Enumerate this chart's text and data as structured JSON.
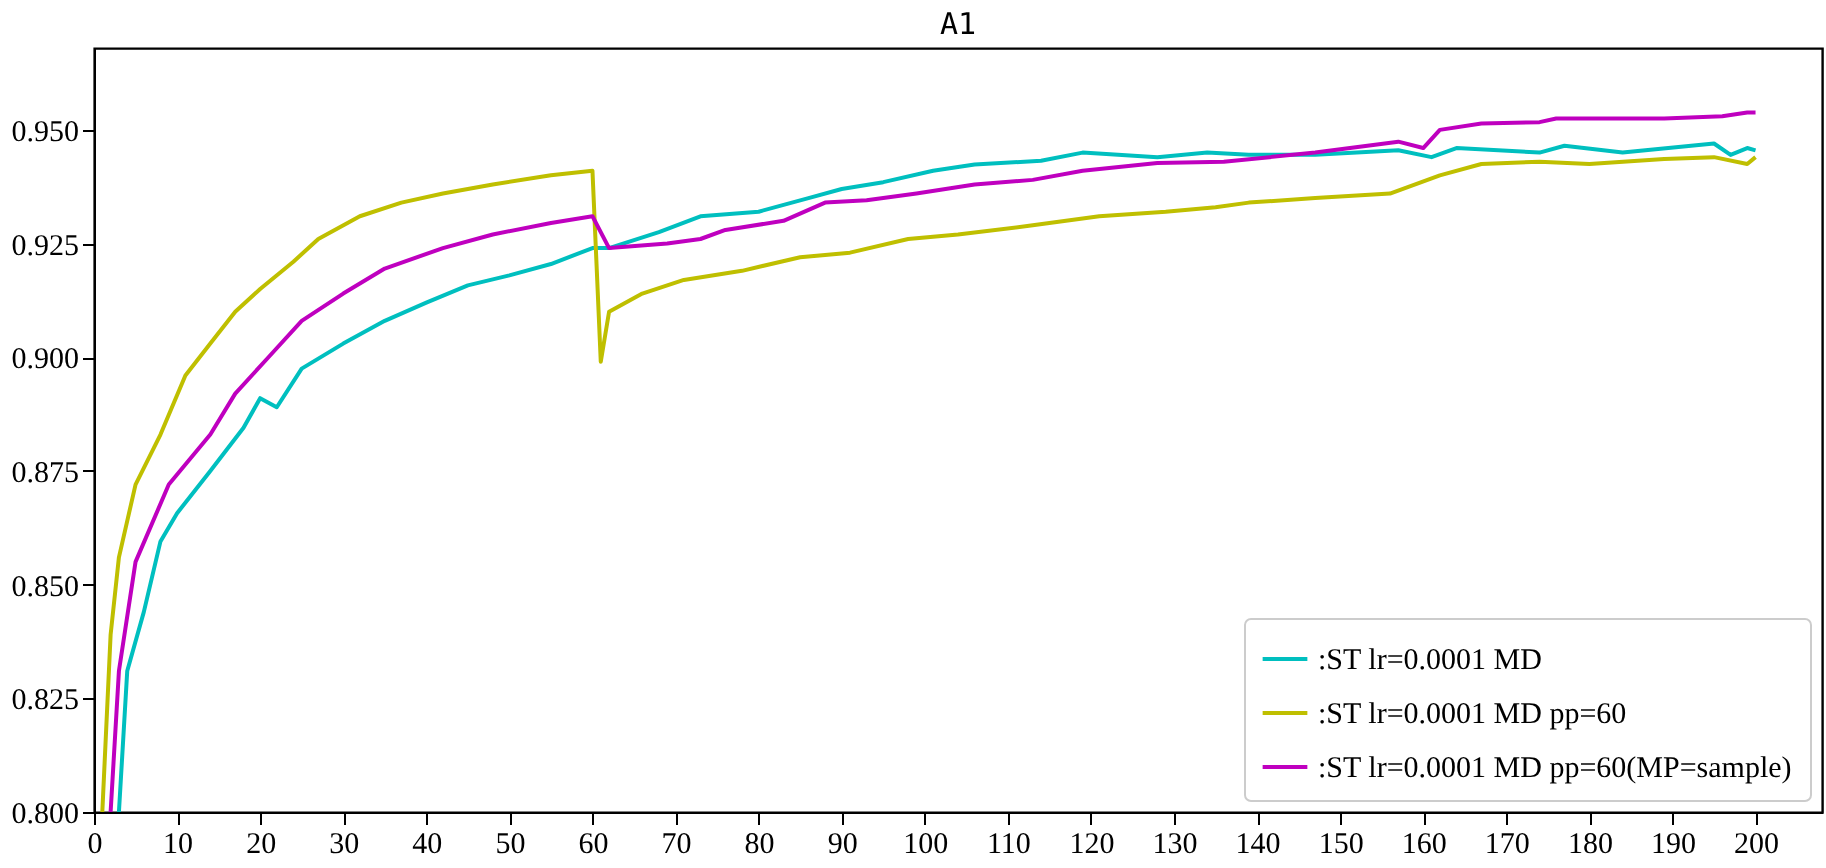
{
  "chart_data": {
    "type": "line",
    "title": "A1",
    "xlim": [
      0,
      208
    ],
    "xticks": [
      0,
      10,
      20,
      30,
      40,
      50,
      60,
      70,
      80,
      90,
      100,
      110,
      120,
      130,
      140,
      150,
      160,
      170,
      180,
      190,
      200
    ],
    "ylim": [
      0.8,
      0.968
    ],
    "yticks": [
      {
        "value": 0.8,
        "label": "0.800"
      },
      0.825,
      {
        "value": 0.85,
        "label": "0.850"
      },
      0.875,
      {
        "value": 0.9,
        "label": "0.900"
      },
      0.925,
      {
        "value": 0.95,
        "label": "0.950"
      }
    ],
    "grid": false,
    "legend": "bottom right",
    "series": [
      {
        "name": ":ST lr=0.0001 MD",
        "color": "#00bfbf",
        "x": [
          3,
          4,
          6,
          8,
          10,
          14,
          18,
          20,
          22,
          25,
          30,
          35,
          40,
          45,
          50,
          55,
          60,
          62,
          68,
          73,
          80,
          86,
          90,
          95,
          101,
          106,
          114,
          119,
          128,
          134,
          139,
          147,
          157,
          161,
          164,
          174,
          177,
          184,
          195,
          197,
          199,
          200
        ],
        "values": [
          0.8,
          0.831,
          0.844,
          0.8595,
          0.8657,
          0.875,
          0.8845,
          0.891,
          0.889,
          0.8975,
          0.903,
          0.908,
          0.912,
          0.9158,
          0.918,
          0.9205,
          0.924,
          0.924,
          0.9275,
          0.931,
          0.932,
          0.935,
          0.937,
          0.9385,
          0.941,
          0.9424,
          0.9432,
          0.945,
          0.944,
          0.945,
          0.9445,
          0.9445,
          0.9455,
          0.944,
          0.946,
          0.945,
          0.9465,
          0.945,
          0.947,
          0.9445,
          0.946,
          0.9455
        ]
      },
      {
        "name": ":ST lr=0.0001 MD pp=60",
        "color": "#bfbf00",
        "x": [
          1,
          2,
          3,
          5,
          8,
          11,
          14,
          17,
          20,
          24,
          27,
          32,
          37,
          42,
          48,
          55,
          60,
          61,
          62,
          66,
          71,
          78,
          85,
          91,
          98,
          104,
          113,
          121,
          129,
          135,
          139,
          147,
          156,
          162,
          167,
          174,
          180,
          189,
          195,
          199,
          200
        ],
        "values": [
          0.8,
          0.839,
          0.856,
          0.872,
          0.883,
          0.896,
          0.903,
          0.91,
          0.915,
          0.921,
          0.926,
          0.931,
          0.934,
          0.936,
          0.938,
          0.94,
          0.941,
          0.899,
          0.91,
          0.914,
          0.917,
          0.919,
          0.922,
          0.923,
          0.926,
          0.927,
          0.929,
          0.931,
          0.932,
          0.933,
          0.934,
          0.935,
          0.936,
          0.94,
          0.9425,
          0.943,
          0.9425,
          0.9436,
          0.944,
          0.9425,
          0.944
        ]
      },
      {
        "name": ":ST lr=0.0001 MD pp=60(MP=sample)",
        "color": "#bf00bf",
        "x": [
          2,
          3,
          5,
          9,
          14,
          17,
          21,
          25,
          30,
          35,
          42,
          48,
          55,
          60,
          62,
          69,
          73,
          76,
          83,
          88,
          93,
          99,
          106,
          113,
          119,
          128,
          136,
          147,
          157,
          160,
          162,
          167,
          174,
          176,
          183,
          189,
          196,
          199,
          200
        ],
        "values": [
          0.8,
          0.831,
          0.855,
          0.872,
          0.883,
          0.892,
          0.9,
          0.908,
          0.914,
          0.9195,
          0.924,
          0.927,
          0.9295,
          0.931,
          0.924,
          0.925,
          0.926,
          0.928,
          0.93,
          0.934,
          0.9345,
          0.936,
          0.938,
          0.939,
          0.941,
          0.9427,
          0.943,
          0.945,
          0.9474,
          0.946,
          0.95,
          0.9514,
          0.9517,
          0.9525,
          0.9525,
          0.9525,
          0.953,
          0.9538,
          0.9538
        ]
      }
    ]
  }
}
